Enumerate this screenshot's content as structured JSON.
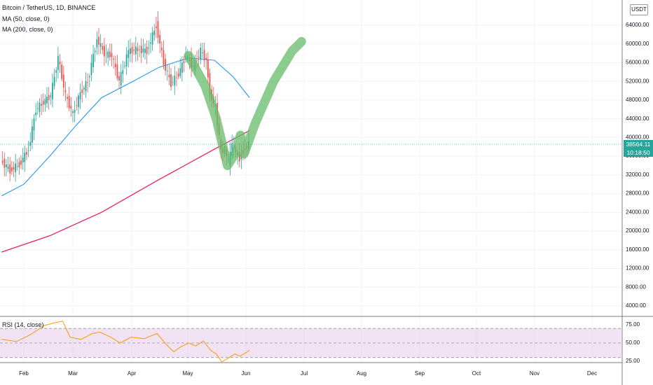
{
  "header": {
    "symbol_title": "Bitcoin / TetherUS, 1D, BINANCE",
    "ma50_label": "MA (50, close, 0)",
    "ma200_label": "MA (200, close, 0)",
    "rsi_label": "RSI (14, close)",
    "currency_badge": "USDT"
  },
  "price_tag": {
    "price": "38564.11",
    "countdown": "10:18:50",
    "color": "#26a69a"
  },
  "colors": {
    "up": "#26a69a",
    "down": "#ef5350",
    "ma50": "#2196f3",
    "ma200": "#e91e63",
    "rsi_line": "#ff9800",
    "rsi_band": "#e1bee7",
    "drawing": "#66bb6a",
    "grid": "#f0f3fa"
  },
  "chart_data": [
    {
      "type": "candlestick",
      "title": "Bitcoin / TetherUS, 1D, BINANCE",
      "xlabel": "",
      "ylabel": "",
      "x_ticks": [
        "Feb",
        "Mar",
        "Apr",
        "May",
        "Jun",
        "Jul",
        "Aug",
        "Sep",
        "Oct",
        "Nov",
        "Dec"
      ],
      "y_ticks": [
        "4000.00",
        "8000.00",
        "12000.00",
        "16000.00",
        "20000.00",
        "24000.00",
        "28000.00",
        "32000.00",
        "36000.00",
        "40000.00",
        "44000.00",
        "48000.00",
        "52000.00",
        "56000.00",
        "60000.00",
        "64000.00"
      ],
      "ylim": [
        2000,
        68000
      ],
      "last_price": 38564.11,
      "price_series": [
        {
          "date": "2021-01-20",
          "close": 35000
        },
        {
          "date": "2021-01-25",
          "close": 33000
        },
        {
          "date": "2021-01-30",
          "close": 34200
        },
        {
          "date": "2021-02-04",
          "close": 37500
        },
        {
          "date": "2021-02-08",
          "close": 46000
        },
        {
          "date": "2021-02-12",
          "close": 47500
        },
        {
          "date": "2021-02-16",
          "close": 49000
        },
        {
          "date": "2021-02-20",
          "close": 57000
        },
        {
          "date": "2021-02-24",
          "close": 49000
        },
        {
          "date": "2021-02-28",
          "close": 45000
        },
        {
          "date": "2021-03-04",
          "close": 49500
        },
        {
          "date": "2021-03-08",
          "close": 52000
        },
        {
          "date": "2021-03-13",
          "close": 61000
        },
        {
          "date": "2021-03-17",
          "close": 58000
        },
        {
          "date": "2021-03-21",
          "close": 57500
        },
        {
          "date": "2021-03-25",
          "close": 52000
        },
        {
          "date": "2021-03-30",
          "close": 58500
        },
        {
          "date": "2021-04-04",
          "close": 58800
        },
        {
          "date": "2021-04-09",
          "close": 58500
        },
        {
          "date": "2021-04-14",
          "close": 64000
        },
        {
          "date": "2021-04-18",
          "close": 56000
        },
        {
          "date": "2021-04-22",
          "close": 51500
        },
        {
          "date": "2021-04-26",
          "close": 53500
        },
        {
          "date": "2021-04-30",
          "close": 57500
        },
        {
          "date": "2021-05-04",
          "close": 55000
        },
        {
          "date": "2021-05-08",
          "close": 58500
        },
        {
          "date": "2021-05-11",
          "close": 56500
        },
        {
          "date": "2021-05-13",
          "close": 49500
        },
        {
          "date": "2021-05-16",
          "close": 46500
        },
        {
          "date": "2021-05-19",
          "close": 37000
        },
        {
          "date": "2021-05-21",
          "close": 37500
        },
        {
          "date": "2021-05-23",
          "close": 34500
        },
        {
          "date": "2021-05-25",
          "close": 38500
        },
        {
          "date": "2021-05-27",
          "close": 37000
        },
        {
          "date": "2021-05-29",
          "close": 35500
        },
        {
          "date": "2021-05-31",
          "close": 37300
        },
        {
          "date": "2021-06-03",
          "close": 38564.11
        }
      ],
      "series": [
        {
          "name": "MA (50, close, 0)",
          "points": [
            {
              "date": "2021-01-20",
              "value": 27500
            },
            {
              "date": "2021-02-01",
              "value": 30000
            },
            {
              "date": "2021-02-15",
              "value": 36000
            },
            {
              "date": "2021-03-01",
              "value": 42500
            },
            {
              "date": "2021-03-15",
              "value": 48500
            },
            {
              "date": "2021-04-01",
              "value": 52000
            },
            {
              "date": "2021-04-15",
              "value": 55000
            },
            {
              "date": "2021-05-01",
              "value": 57000
            },
            {
              "date": "2021-05-15",
              "value": 56500
            },
            {
              "date": "2021-05-25",
              "value": 53000
            },
            {
              "date": "2021-06-03",
              "value": 48500
            }
          ]
        },
        {
          "name": "MA (200, close, 0)",
          "points": [
            {
              "date": "2021-01-20",
              "value": 15500
            },
            {
              "date": "2021-02-15",
              "value": 19000
            },
            {
              "date": "2021-03-15",
              "value": 24000
            },
            {
              "date": "2021-04-15",
              "value": 31000
            },
            {
              "date": "2021-05-15",
              "value": 37500
            },
            {
              "date": "2021-06-03",
              "value": 41500
            }
          ]
        }
      ]
    },
    {
      "type": "line",
      "title": "RSI (14, close)",
      "xlabel": "",
      "ylabel": "",
      "y_ticks": [
        "25.00",
        "50.00",
        "75.00"
      ],
      "ylim": [
        15,
        85
      ],
      "band": [
        30,
        70
      ],
      "series": [
        {
          "name": "RSI (14, close)",
          "points": [
            {
              "date": "2021-01-20",
              "value": 55
            },
            {
              "date": "2021-01-28",
              "value": 52
            },
            {
              "date": "2021-02-05",
              "value": 62
            },
            {
              "date": "2021-02-12",
              "value": 74
            },
            {
              "date": "2021-02-18",
              "value": 78
            },
            {
              "date": "2021-02-22",
              "value": 80
            },
            {
              "date": "2021-02-26",
              "value": 58
            },
            {
              "date": "2021-03-04",
              "value": 55
            },
            {
              "date": "2021-03-10",
              "value": 63
            },
            {
              "date": "2021-03-14",
              "value": 65
            },
            {
              "date": "2021-03-20",
              "value": 58
            },
            {
              "date": "2021-03-25",
              "value": 50
            },
            {
              "date": "2021-03-31",
              "value": 58
            },
            {
              "date": "2021-04-07",
              "value": 56
            },
            {
              "date": "2021-04-14",
              "value": 63
            },
            {
              "date": "2021-04-19",
              "value": 48
            },
            {
              "date": "2021-04-23",
              "value": 38
            },
            {
              "date": "2021-04-27",
              "value": 45
            },
            {
              "date": "2021-05-01",
              "value": 50
            },
            {
              "date": "2021-05-05",
              "value": 46
            },
            {
              "date": "2021-05-09",
              "value": 53
            },
            {
              "date": "2021-05-13",
              "value": 40
            },
            {
              "date": "2021-05-16",
              "value": 35
            },
            {
              "date": "2021-05-19",
              "value": 24
            },
            {
              "date": "2021-05-23",
              "value": 30
            },
            {
              "date": "2021-05-26",
              "value": 35
            },
            {
              "date": "2021-05-29",
              "value": 32
            },
            {
              "date": "2021-06-03",
              "value": 40
            }
          ]
        }
      ]
    }
  ],
  "drawing": {
    "label": "hand-drawn V recovery path",
    "points": [
      {
        "date": "2021-05-01",
        "value": 57500
      },
      {
        "date": "2021-05-10",
        "value": 51000
      },
      {
        "date": "2021-05-16",
        "value": 44000
      },
      {
        "date": "2021-05-22",
        "value": 34000
      },
      {
        "date": "2021-05-27",
        "value": 37000
      },
      {
        "date": "2021-05-29",
        "value": 40500
      },
      {
        "date": "2021-05-31",
        "value": 36500
      },
      {
        "date": "2021-06-06",
        "value": 43000
      },
      {
        "date": "2021-06-16",
        "value": 52000
      },
      {
        "date": "2021-06-26",
        "value": 58500
      },
      {
        "date": "2021-07-01",
        "value": 60500
      }
    ]
  }
}
